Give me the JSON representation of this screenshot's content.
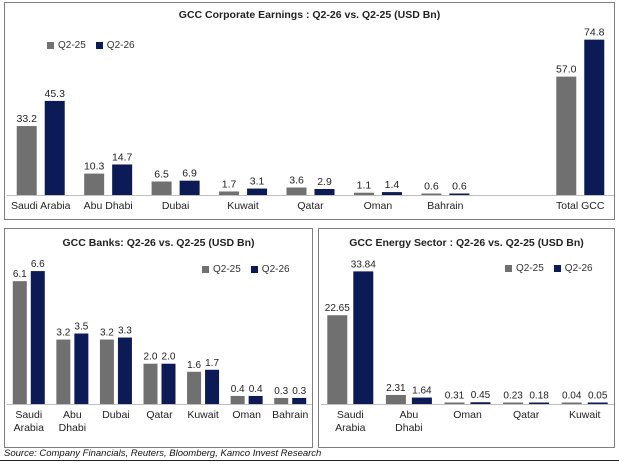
{
  "colors": {
    "q225": "#707070",
    "q226": "#0c1a56"
  },
  "source": "Source: Company Financials, Reuters, Bloomberg, Kamco Invest Research",
  "charts": {
    "top": {
      "title": "GCC Corporate Earnings : Q2-26 vs. Q2-25 (USD Bn)",
      "legend": [
        "Q2-25",
        "Q2-26"
      ]
    },
    "banks": {
      "title": "GCC Banks: Q2-26 vs. Q2-25 (USD Bn)",
      "legend": [
        "Q2-25",
        "Q2-26"
      ]
    },
    "energy": {
      "title": "GCC Energy Sector : Q2-26 vs. Q2-25 (USD Bn)",
      "legend": [
        "Q2-25",
        "Q2-26"
      ]
    }
  },
  "chart_data": [
    {
      "type": "bar",
      "title": "GCC Corporate Earnings : Q2-26 vs. Q2-25 (USD Bn)",
      "categories": [
        "Saudi Arabia",
        "Abu Dhabi",
        "Dubai",
        "Kuwait",
        "Qatar",
        "Oman",
        "Bahrain",
        "",
        "Total GCC"
      ],
      "series": [
        {
          "name": "Q2-25",
          "values": [
            33.2,
            10.3,
            6.5,
            1.7,
            3.6,
            1.1,
            0.6,
            null,
            57.0
          ],
          "labels": [
            "33.2",
            "10.3",
            "6.5",
            "1.7",
            "3.6",
            "1.1",
            "0.6",
            "",
            "57.0"
          ]
        },
        {
          "name": "Q2-26",
          "values": [
            45.3,
            14.7,
            6.9,
            3.1,
            2.9,
            1.4,
            0.6,
            null,
            74.8
          ],
          "labels": [
            "45.3",
            "14.7",
            "6.9",
            "3.1",
            "2.9",
            "1.4",
            "0.6",
            "",
            "74.8"
          ]
        }
      ],
      "legend_position": "top-left",
      "grid": false
    },
    {
      "type": "bar",
      "title": "GCC Banks: Q2-26 vs. Q2-25 (USD Bn)",
      "categories": [
        "Saudi Arabia",
        "Abu Dhabi",
        "Dubai",
        "Qatar",
        "Kuwait",
        "Oman",
        "Bahrain"
      ],
      "series": [
        {
          "name": "Q2-25",
          "values": [
            6.1,
            3.2,
            3.2,
            2.0,
            1.6,
            0.4,
            0.3
          ],
          "labels": [
            "6.1",
            "3.2",
            "3.2",
            "2.0",
            "1.6",
            "0.4",
            "0.3"
          ]
        },
        {
          "name": "Q2-26",
          "values": [
            6.6,
            3.5,
            3.3,
            2.0,
            1.7,
            0.4,
            0.3
          ],
          "labels": [
            "6.6",
            "3.5",
            "3.3",
            "2.0",
            "1.7",
            "0.4",
            "0.3"
          ]
        }
      ],
      "legend_position": "top-right",
      "grid": false
    },
    {
      "type": "bar",
      "title": "GCC Energy Sector : Q2-26 vs. Q2-25 (USD Bn)",
      "categories": [
        "Saudi Arabia",
        "Abu Dhabi",
        "Oman",
        "Qatar",
        "Kuwait"
      ],
      "series": [
        {
          "name": "Q2-25",
          "values": [
            22.65,
            2.31,
            0.31,
            0.23,
            0.04
          ],
          "labels": [
            "22.65",
            "2.31",
            "0.31",
            "0.23",
            "0.04"
          ]
        },
        {
          "name": "Q2-26",
          "values": [
            33.84,
            1.64,
            0.45,
            0.18,
            0.05
          ],
          "labels": [
            "33.84",
            "1.64",
            "0.45",
            "0.18",
            "0.05"
          ]
        }
      ],
      "legend_position": "top-right",
      "grid": false
    }
  ]
}
